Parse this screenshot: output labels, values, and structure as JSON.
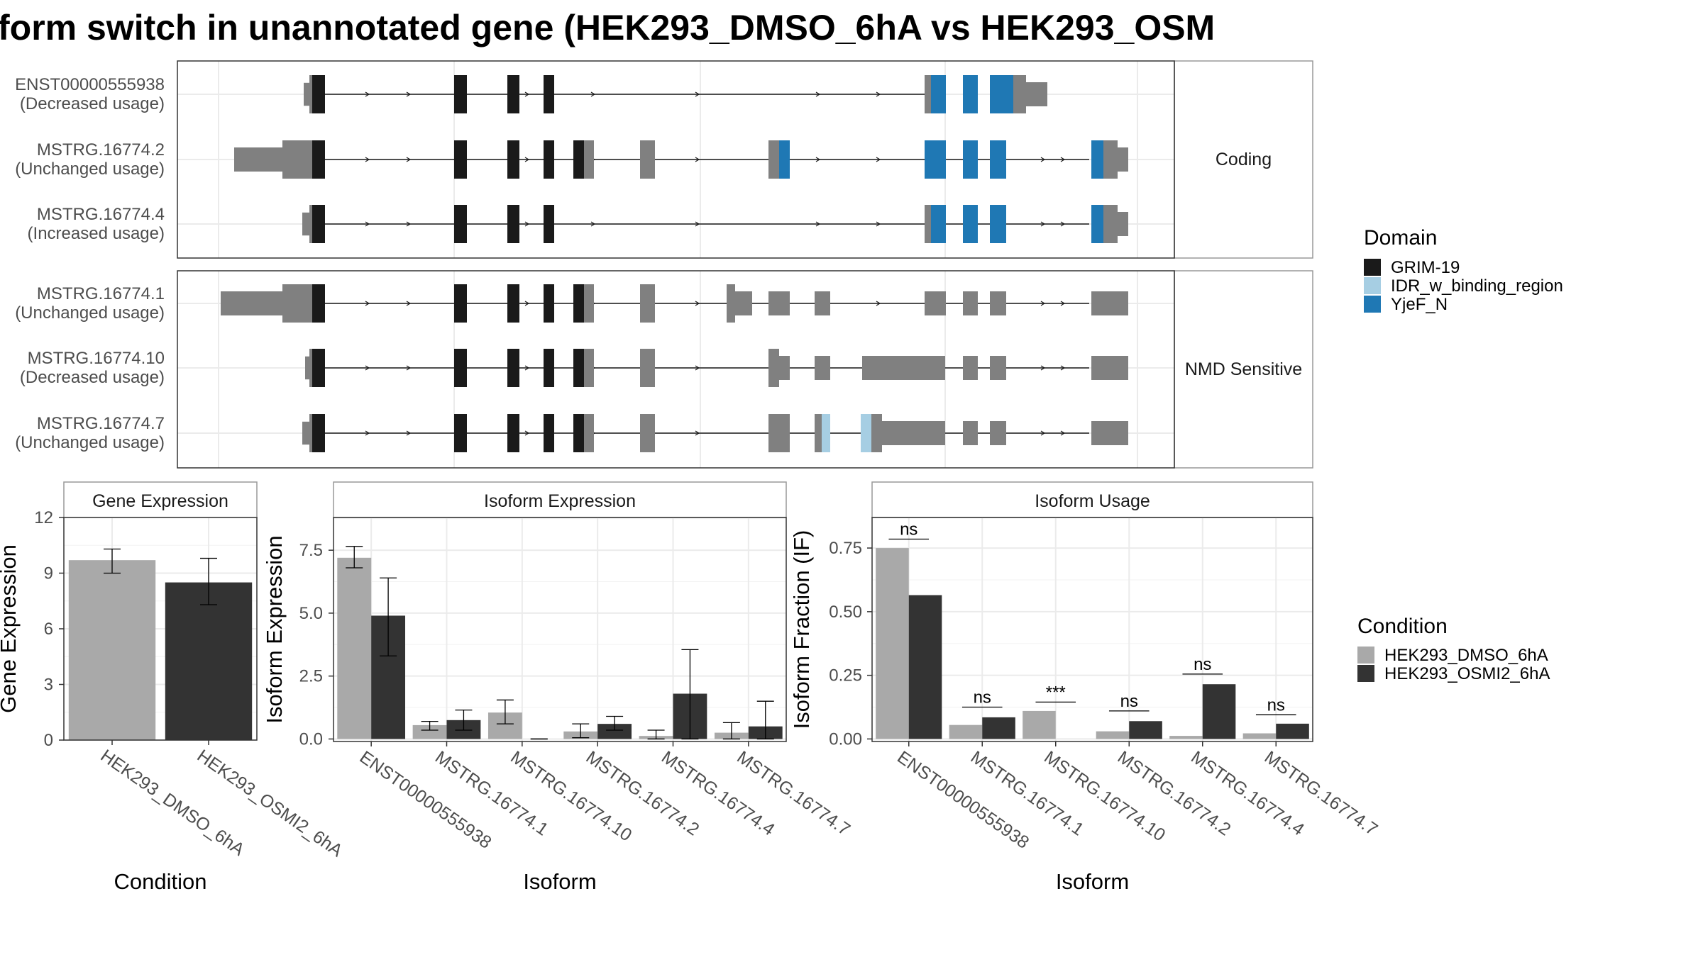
{
  "title": "form switch in unannotated gene (HEK293_DMSO_6hA vs HEK293_OSM",
  "colors": {
    "grim19": "#1a1a1a",
    "idr": "#a6cee3",
    "yjef": "#1f78b4",
    "utr": "#808080",
    "dmso": "#a9a9a9",
    "osmi2": "#333333",
    "panel_border": "#333333",
    "strip_border": "#999999",
    "grid": "#ebebeb"
  },
  "groups": [
    {
      "label": "Coding"
    },
    {
      "label": "NMD Sensitive"
    }
  ],
  "legend_domain": {
    "title": "Domain",
    "items": [
      {
        "label": "GRIM-19",
        "color": "#1a1a1a"
      },
      {
        "label": "IDR_w_binding_region",
        "color": "#a6cee3"
      },
      {
        "label": "YjeF_N",
        "color": "#1f78b4"
      }
    ]
  },
  "legend_condition": {
    "title": "Condition",
    "items": [
      {
        "label": "HEK293_DMSO_6hA",
        "color": "#a9a9a9"
      },
      {
        "label": "HEK293_OSMI2_6hA",
        "color": "#333333"
      }
    ]
  },
  "transcripts": [
    {
      "id": "ENST00000555938",
      "status": "(Decreased usage)",
      "group": 0
    },
    {
      "id": "MSTRG.16774.2",
      "status": "(Unchanged usage)",
      "group": 0
    },
    {
      "id": "MSTRG.16774.4",
      "status": "(Increased usage)",
      "group": 0
    },
    {
      "id": "MSTRG.16774.1",
      "status": "(Unchanged usage)",
      "group": 1
    },
    {
      "id": "MSTRG.16774.10",
      "status": "(Decreased usage)",
      "group": 1
    },
    {
      "id": "MSTRG.16774.7",
      "status": "(Unchanged usage)",
      "group": 1
    }
  ],
  "chart_data": [
    {
      "type": "bar",
      "title": "Gene Expression",
      "xlabel": "Condition",
      "ylabel": "Gene Expression",
      "ylim": [
        0,
        12
      ],
      "yticks": [
        0,
        3,
        6,
        9,
        12
      ],
      "categories": [
        "HEK293_DMSO_6hA",
        "HEK293_OSMI2_6hA"
      ],
      "values": [
        9.7,
        8.5
      ],
      "err_low": [
        9.0,
        7.3
      ],
      "err_high": [
        10.3,
        9.8
      ]
    },
    {
      "type": "bar",
      "title": "Isoform Expression",
      "xlabel": "Isoform",
      "ylabel": "Isoform Expression",
      "ylim": [
        -0.1,
        8.8
      ],
      "yticks": [
        0.0,
        2.5,
        5.0,
        7.5
      ],
      "categories": [
        "ENST00000555938",
        "MSTRG.16774.1",
        "MSTRG.16774.10",
        "MSTRG.16774.2",
        "MSTRG.16774.4",
        "MSTRG.16774.7"
      ],
      "series": [
        {
          "name": "HEK293_DMSO_6hA",
          "values": [
            7.2,
            0.55,
            1.05,
            0.3,
            0.12,
            0.25
          ],
          "err_low": [
            6.8,
            0.35,
            0.6,
            0.05,
            0.0,
            0.0
          ],
          "err_high": [
            7.65,
            0.7,
            1.55,
            0.6,
            0.35,
            0.65
          ]
        },
        {
          "name": "HEK293_OSMI2_6hA",
          "values": [
            4.9,
            0.75,
            0.0,
            0.6,
            1.8,
            0.5
          ],
          "err_low": [
            3.3,
            0.35,
            0.0,
            0.35,
            0.0,
            0.0
          ],
          "err_high": [
            6.4,
            1.15,
            0.0,
            0.9,
            3.55,
            1.5
          ]
        }
      ]
    },
    {
      "type": "bar",
      "title": "Isoform Usage",
      "xlabel": "Isoform",
      "ylabel": "Isoform Fraction (IF)",
      "ylim": [
        -0.01,
        0.87
      ],
      "yticks": [
        0.0,
        0.25,
        0.5,
        0.75
      ],
      "tick_labels": [
        "0.00",
        "0.25",
        "0.50",
        "0.75"
      ],
      "categories": [
        "ENST00000555938",
        "MSTRG.16774.1",
        "MSTRG.16774.10",
        "MSTRG.16774.2",
        "MSTRG.16774.4",
        "MSTRG.16774.7"
      ],
      "series": [
        {
          "name": "HEK293_DMSO_6hA",
          "values": [
            0.75,
            0.055,
            0.11,
            0.03,
            0.012,
            0.022
          ]
        },
        {
          "name": "HEK293_OSMI2_6hA",
          "values": [
            0.565,
            0.085,
            0.0,
            0.07,
            0.215,
            0.06
          ]
        }
      ],
      "significance": [
        {
          "label": "ns",
          "y": 0.785
        },
        {
          "label": "ns",
          "y": 0.125
        },
        {
          "label": "***",
          "y": 0.145
        },
        {
          "label": "ns",
          "y": 0.11
        },
        {
          "label": "ns",
          "y": 0.255
        },
        {
          "label": "ns",
          "y": 0.095
        }
      ]
    }
  ]
}
